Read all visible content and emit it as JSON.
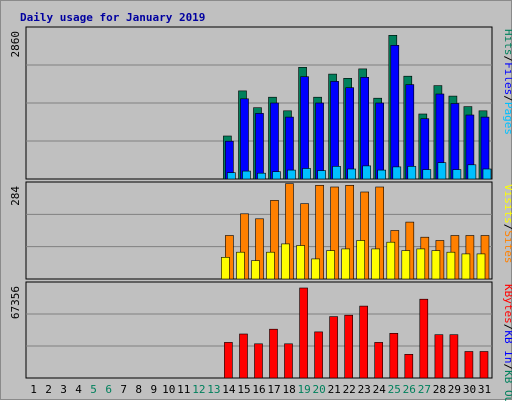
{
  "chart_data": {
    "type": "bar",
    "title": "Daily usage for January 2019",
    "categories": [
      "1",
      "2",
      "3",
      "4",
      "5",
      "6",
      "7",
      "8",
      "9",
      "10",
      "11",
      "12",
      "13",
      "14",
      "15",
      "16",
      "17",
      "18",
      "19",
      "20",
      "21",
      "22",
      "23",
      "24",
      "25",
      "26",
      "27",
      "28",
      "29",
      "30",
      "31"
    ],
    "category_colors": [
      "#000000",
      "#000000",
      "#000000",
      "#000000",
      "#00805c",
      "#00805c",
      "#000000",
      "#000000",
      "#000000",
      "#000000",
      "#000000",
      "#00805c",
      "#00805c",
      "#000000",
      "#000000",
      "#000000",
      "#000000",
      "#000000",
      "#00805c",
      "#00805c",
      "#000000",
      "#000000",
      "#000000",
      "#000000",
      "#00805c",
      "#00805c",
      "#00805c",
      "#000000",
      "#000000",
      "#000000",
      "#000000"
    ],
    "panels": [
      {
        "max_label": "2860",
        "ylim": [
          0,
          2860
        ],
        "legend": [
          {
            "text": "Hits",
            "color": "#00805c"
          },
          {
            "text": "/",
            "color": "#000000"
          },
          {
            "text": "Files",
            "color": "#0000ff"
          },
          {
            "text": "/",
            "color": "#000000"
          },
          {
            "text": "Pages",
            "color": "#00c0ff"
          }
        ],
        "series": [
          {
            "name": "Hits",
            "color": "#00805c",
            "values": [
              0,
              0,
              0,
              0,
              0,
              0,
              0,
              0,
              0,
              0,
              0,
              0,
              0,
              820,
              1680,
              1360,
              1560,
              1300,
              2130,
              1560,
              2000,
              1920,
              2100,
              1540,
              2740,
              1960,
              1240,
              1780,
              1580,
              1380,
              1300
            ]
          },
          {
            "name": "Files",
            "color": "#0000ff",
            "values": [
              0,
              0,
              0,
              0,
              0,
              0,
              0,
              0,
              0,
              0,
              0,
              0,
              0,
              720,
              1530,
              1250,
              1450,
              1180,
              1950,
              1450,
              1860,
              1740,
              1940,
              1450,
              2550,
              1800,
              1150,
              1620,
              1440,
              1220,
              1180
            ]
          },
          {
            "name": "Pages",
            "color": "#00c0ff",
            "values": [
              0,
              0,
              0,
              0,
              0,
              0,
              0,
              0,
              0,
              0,
              0,
              0,
              0,
              120,
              150,
              110,
              140,
              170,
              200,
              160,
              240,
              190,
              250,
              170,
              230,
              240,
              180,
              310,
              180,
              270,
              190
            ]
          }
        ]
      },
      {
        "max_label": "284",
        "ylim": [
          0,
          284
        ],
        "legend": [
          {
            "text": "Visits",
            "color": "#ffff00"
          },
          {
            "text": "/",
            "color": "#000000"
          },
          {
            "text": "Sites",
            "color": "#ff8000"
          }
        ],
        "series": [
          {
            "name": "Sites",
            "color": "#ff8000",
            "values": [
              0,
              0,
              0,
              0,
              0,
              0,
              0,
              0,
              0,
              0,
              0,
              0,
              0,
              130,
              195,
              180,
              235,
              285,
              225,
              280,
              275,
              280,
              260,
              275,
              145,
              170,
              125,
              115,
              130,
              130,
              130
            ]
          },
          {
            "name": "Visits",
            "color": "#ffff00",
            "values": [
              0,
              0,
              0,
              0,
              0,
              0,
              0,
              0,
              0,
              0,
              0,
              0,
              0,
              65,
              80,
              55,
              80,
              105,
              100,
              60,
              85,
              90,
              115,
              90,
              110,
              85,
              90,
              85,
              80,
              75,
              75
            ]
          }
        ]
      },
      {
        "max_label": "67356",
        "ylim": [
          0,
          67356
        ],
        "legend": [
          {
            "text": "KBytes",
            "color": "#ff0000"
          },
          {
            "text": "/",
            "color": "#000000"
          },
          {
            "text": "KB In",
            "color": "#0000ff"
          },
          {
            "text": "/",
            "color": "#000000"
          },
          {
            "text": "KB Out",
            "color": "#00805c"
          }
        ],
        "series": [
          {
            "name": "KBytes",
            "color": "#ff0000",
            "values": [
              0,
              0,
              0,
              0,
              0,
              0,
              0,
              0,
              0,
              0,
              0,
              0,
              0,
              25500,
              31500,
              24500,
              35000,
              24500,
              64500,
              33000,
              44000,
              45000,
              51500,
              25500,
              32000,
              17000,
              56500,
              31000,
              31000,
              19000,
              19000
            ]
          }
        ]
      }
    ]
  }
}
